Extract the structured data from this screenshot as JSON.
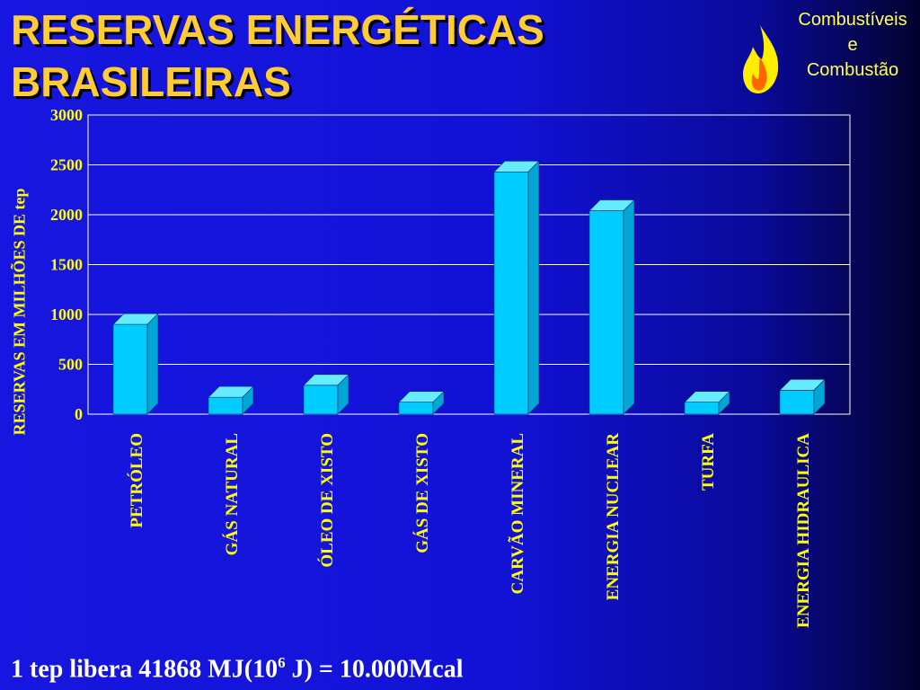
{
  "title": {
    "line1": "RESERVAS ENERGÉTICAS",
    "line2": "BRASILEIRAS"
  },
  "brand": {
    "line1": "Combustíveis",
    "line2": "e",
    "line3": "Combustão",
    "icon": "flame-icon"
  },
  "footnote": {
    "prefix": "1 tep libera 41868 MJ(10",
    "exponent": "6",
    "suffix": " J) = 10.000Mcal"
  },
  "colors": {
    "bar_front": "#00ccff",
    "bar_top": "#66ecff",
    "bar_side": "#00a6d6",
    "text": "#ffff00",
    "title": "#ffcc33"
  },
  "chart_data": {
    "type": "bar",
    "categories": [
      "PETRÓLEO",
      "GÁS NATURAL",
      "ÓLEO DE XISTO",
      "GÁS DE XISTO",
      "CARVÃO MINERAL",
      "ENERGIA NUCLEAR",
      "TURFA",
      "ENERGIA HIDRAULICA"
    ],
    "values": [
      900,
      170,
      290,
      120,
      2430,
      2040,
      120,
      240
    ],
    "ylabel": "RESERVAS EM MILHÕES DE tep",
    "yticks": [
      0,
      500,
      1000,
      1500,
      2000,
      2500,
      3000
    ],
    "ylim": [
      0,
      3000
    ],
    "grid": true,
    "style": "3d-column"
  }
}
